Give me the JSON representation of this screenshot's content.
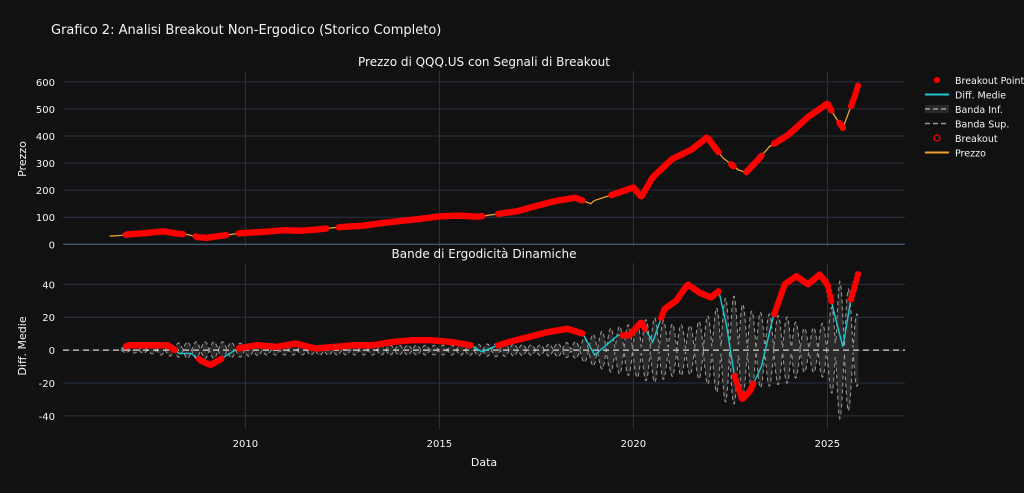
{
  "title": "Grafico 2: Analisi Breakout Non-Ergodico (Storico Completo)",
  "xlabel": "Data",
  "colors": {
    "background": "#111111",
    "grid": "#283442",
    "price": "#f0a030",
    "breakout": "#ff0000",
    "diff": "#1ec8d2",
    "band": "#9a9a9a",
    "band_fill": "#2a2a2a",
    "zero": "#d8d8d8"
  },
  "legend": {
    "items": [
      {
        "key": "breakout_point",
        "label": "Breakout Point",
        "type": "dot"
      },
      {
        "key": "diff",
        "label": "Diff. Medie",
        "type": "line"
      },
      {
        "key": "band_inf",
        "label": "Banda Inf.",
        "type": "band-dash"
      },
      {
        "key": "band_sup",
        "label": "Banda Sup.",
        "type": "dash"
      },
      {
        "key": "breakout",
        "label": "Breakout",
        "type": "ring"
      },
      {
        "key": "price",
        "label": "Prezzo",
        "type": "line"
      }
    ]
  },
  "chart_data": [
    {
      "type": "line",
      "title": "Prezzo di QQQ.US con Segnali di Breakout",
      "ylabel": "Prezzo",
      "xlim": [
        2005.3,
        2027.0
      ],
      "ylim": [
        -10,
        640
      ],
      "xticks": [
        2010,
        2015,
        2020,
        2025
      ],
      "yticks": [
        0,
        100,
        200,
        300,
        400,
        500,
        600
      ],
      "series": [
        {
          "name": "Prezzo",
          "x": [
            2006.5,
            2006.8,
            2007.0,
            2007.3,
            2007.6,
            2007.9,
            2008.2,
            2008.5,
            2008.8,
            2009.0,
            2009.2,
            2009.5,
            2009.8,
            2010.2,
            2010.6,
            2011.0,
            2011.4,
            2011.8,
            2012.2,
            2012.6,
            2013.0,
            2013.5,
            2014.0,
            2014.5,
            2015.0,
            2015.5,
            2016.0,
            2016.5,
            2017.0,
            2017.5,
            2018.0,
            2018.5,
            2018.9,
            2019.0,
            2019.5,
            2020.0,
            2020.2,
            2020.5,
            2021.0,
            2021.5,
            2021.9,
            2022.3,
            2022.7,
            2022.9,
            2023.2,
            2023.5,
            2024.0,
            2024.5,
            2025.0,
            2025.2,
            2025.4,
            2025.7,
            2025.8
          ],
          "y": [
            30,
            33,
            37,
            40,
            44,
            48,
            40,
            36,
            26,
            24,
            28,
            34,
            40,
            44,
            47,
            52,
            50,
            54,
            60,
            65,
            68,
            78,
            86,
            94,
            103,
            106,
            102,
            112,
            122,
            142,
            160,
            172,
            150,
            162,
            185,
            210,
            175,
            248,
            315,
            350,
            395,
            320,
            275,
            265,
            310,
            360,
            405,
            470,
            520,
            470,
            430,
            545,
            590
          ]
        },
        {
          "name": "Breakout Point",
          "ranges": [
            [
              2006.9,
              2008.4
            ],
            [
              2008.7,
              2009.5
            ],
            [
              2009.8,
              2012.1
            ],
            [
              2012.4,
              2016.1
            ],
            [
              2016.5,
              2018.7
            ],
            [
              2019.4,
              2022.2
            ],
            [
              2022.5,
              2022.6
            ],
            [
              2022.9,
              2023.3
            ],
            [
              2023.6,
              2025.1
            ],
            [
              2025.3,
              2025.4
            ],
            [
              2025.6,
              2025.8
            ]
          ]
        }
      ]
    },
    {
      "type": "line",
      "title": "Bande di Ergodicità Dinamiche",
      "ylabel": "Diff. Medie",
      "xlim": [
        2005.3,
        2027.0
      ],
      "ylim": [
        -48,
        53
      ],
      "xticks": [
        2010,
        2015,
        2020,
        2025
      ],
      "yticks": [
        -40,
        -20,
        0,
        20,
        40
      ],
      "series": [
        {
          "name": "Diff. Medie",
          "x": [
            2006.8,
            2007.0,
            2007.5,
            2008.0,
            2008.3,
            2008.6,
            2008.9,
            2009.1,
            2009.4,
            2009.8,
            2010.3,
            2010.8,
            2011.3,
            2011.8,
            2012.3,
            2012.8,
            2013.3,
            2013.8,
            2014.3,
            2014.8,
            2015.3,
            2015.8,
            2016.1,
            2016.4,
            2016.8,
            2017.3,
            2017.8,
            2018.3,
            2018.7,
            2019.0,
            2019.3,
            2019.6,
            2019.9,
            2020.2,
            2020.5,
            2020.8,
            2021.1,
            2021.4,
            2021.7,
            2022.0,
            2022.2,
            2022.4,
            2022.6,
            2022.8,
            2023.0,
            2023.3,
            2023.6,
            2023.9,
            2024.2,
            2024.5,
            2024.8,
            2025.0,
            2025.2,
            2025.4,
            2025.6,
            2025.8
          ],
          "y": [
            1,
            3,
            3,
            3,
            -2,
            -2,
            -7,
            -9,
            -5,
            1,
            3,
            2,
            4,
            1,
            2,
            3,
            3,
            5,
            6,
            6,
            5,
            3,
            -1,
            2,
            5,
            8,
            11,
            13,
            10,
            -3,
            3,
            9,
            9,
            17,
            5,
            25,
            30,
            40,
            35,
            32,
            36,
            15,
            -15,
            -30,
            -25,
            -10,
            20,
            40,
            45,
            40,
            46,
            40,
            20,
            2,
            30,
            47
          ]
        },
        {
          "name": "Breakout",
          "ranges": [
            [
              2006.9,
              2008.2
            ],
            [
              2008.8,
              2009.4
            ],
            [
              2009.8,
              2015.8
            ],
            [
              2016.5,
              2018.7
            ],
            [
              2019.7,
              2020.3
            ],
            [
              2020.7,
              2022.2
            ],
            [
              2022.6,
              2023.1
            ],
            [
              2023.6,
              2025.1
            ],
            [
              2025.6,
              2025.8
            ]
          ]
        },
        {
          "name": "Banda Sup.",
          "envelope_x": [
            2006.8,
            2007.5,
            2008.5,
            2009.5,
            2010.5,
            2011.5,
            2012.5,
            2013.5,
            2014.5,
            2015.5,
            2016.5,
            2017.5,
            2018.5,
            2019.0,
            2019.5,
            2020.0,
            2020.5,
            2021.0,
            2021.5,
            2022.0,
            2022.5,
            2023.0,
            2023.5,
            2024.0,
            2024.5,
            2025.0,
            2025.3,
            2025.5,
            2025.8
          ],
          "envelope_y": [
            1.5,
            2,
            5,
            5,
            3,
            3,
            3,
            3,
            3,
            3,
            4,
            3,
            5,
            10,
            14,
            16,
            20,
            16,
            15,
            22,
            35,
            24,
            22,
            20,
            12,
            18,
            42,
            40,
            20
          ]
        },
        {
          "name": "Banda Inf.",
          "mirror_of": "Banda Sup."
        }
      ]
    }
  ]
}
